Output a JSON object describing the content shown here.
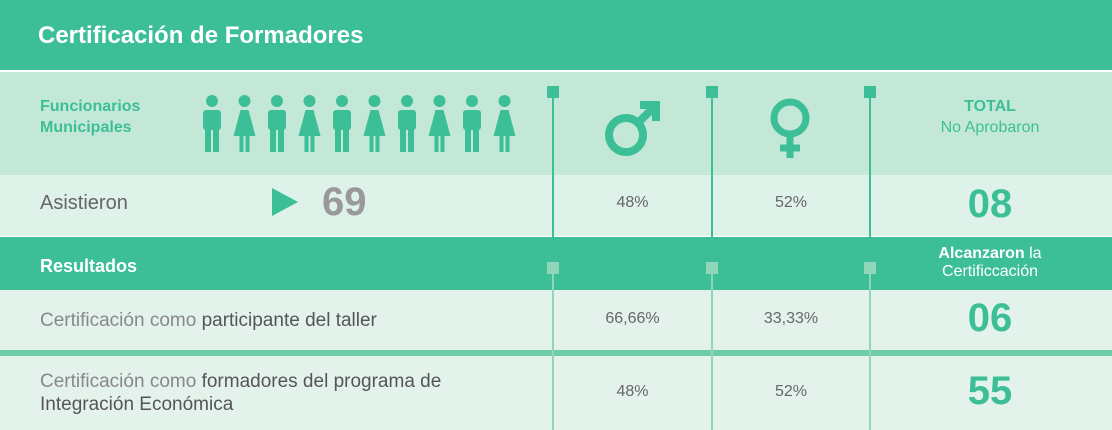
{
  "header": {
    "title": "Certificación de Formadores"
  },
  "group": {
    "label": "Funcionarios Municipales"
  },
  "total_heading": {
    "bold": "TOTAL",
    "text": "No Aprobaron"
  },
  "attended": {
    "label": "Asistieron",
    "count": 69,
    "male": "48%",
    "female": "52%",
    "total": "08"
  },
  "results_heading": {
    "label": "Resultados",
    "total_bold": "Alcanzaron",
    "total_text": "la Certificcación"
  },
  "results": [
    {
      "prefix": "Certificación como",
      "emphasis": "participante del taller",
      "male": "66,66%",
      "female": "33,33%",
      "total": "06"
    },
    {
      "prefix": "Certificación como",
      "emphasis": "formadores del programa de Integración Económica",
      "male": "48%",
      "female": "52%",
      "total": "55"
    }
  ]
}
